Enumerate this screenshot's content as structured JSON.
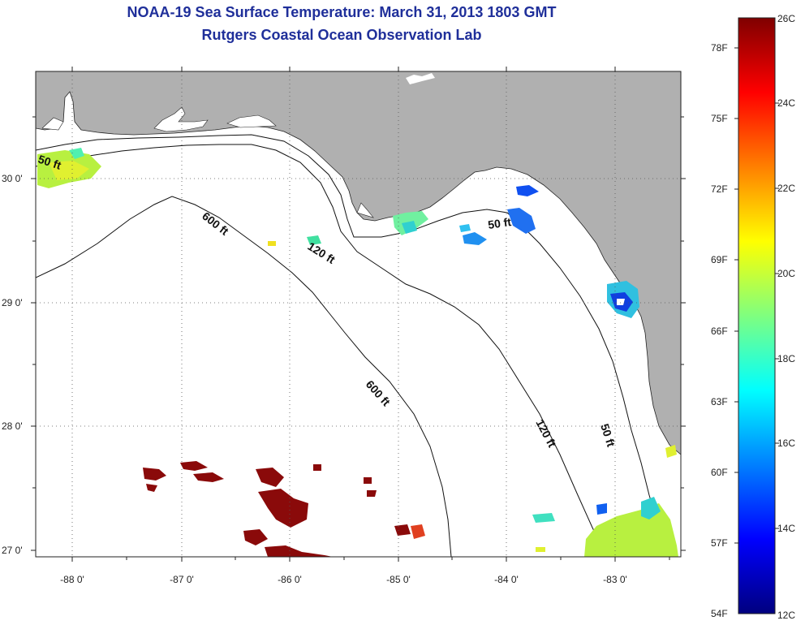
{
  "title": {
    "line1": "NOAA-19 Sea Surface Temperature:  March 31, 2013 1803 GMT",
    "line2": "Rutgers Coastal Ocean Observation Lab"
  },
  "map": {
    "land_color": "#b0b0b0",
    "water_color": "#ffffff",
    "lat_ticks": [
      "30 0'",
      "29 0'",
      "28 0'",
      "27 0'"
    ],
    "lon_ticks": [
      "-88 0'",
      "-87 0'",
      "-86 0'",
      "-85 0'",
      "-84 0'",
      "-83 0'"
    ],
    "contour_labels": [
      "50 ft",
      "600 ft",
      "120 ft",
      "50 ft",
      "600 ft",
      "120 ft",
      "50 ft"
    ]
  },
  "colorbar": {
    "fahrenheit": [
      "78F",
      "75F",
      "72F",
      "69F",
      "66F",
      "63F",
      "60F",
      "57F",
      "54F"
    ],
    "celsius": [
      "26C",
      "24C",
      "22C",
      "20C",
      "18C",
      "16C",
      "14C",
      "12C"
    ]
  }
}
